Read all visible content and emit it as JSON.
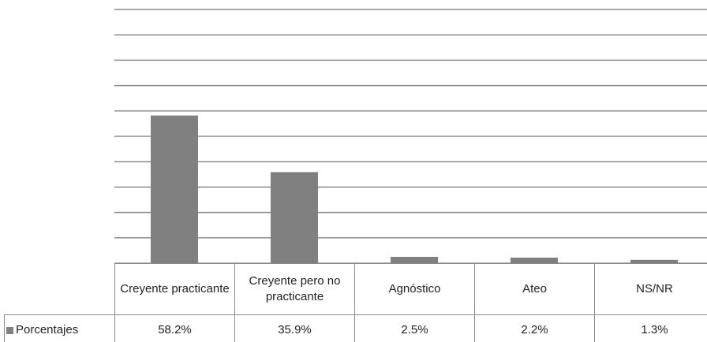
{
  "chart_data": {
    "type": "bar",
    "categories": [
      "Creyente practicante",
      "Creyente pero no practicante",
      "Agnóstico",
      "Ateo",
      "NS/NR"
    ],
    "series": [
      {
        "name": "Porcentajes",
        "color": "#808080",
        "values": [
          58.2,
          35.9,
          2.5,
          2.2,
          1.3
        ],
        "value_labels": [
          "58.2%",
          "35.9%",
          "2.5%",
          "2.2%",
          "1.3%"
        ]
      }
    ],
    "ylim": [
      0,
      100
    ],
    "yticks": [
      0,
      10,
      20,
      30,
      40,
      50,
      60,
      70,
      80,
      90,
      100
    ],
    "grid": true
  }
}
